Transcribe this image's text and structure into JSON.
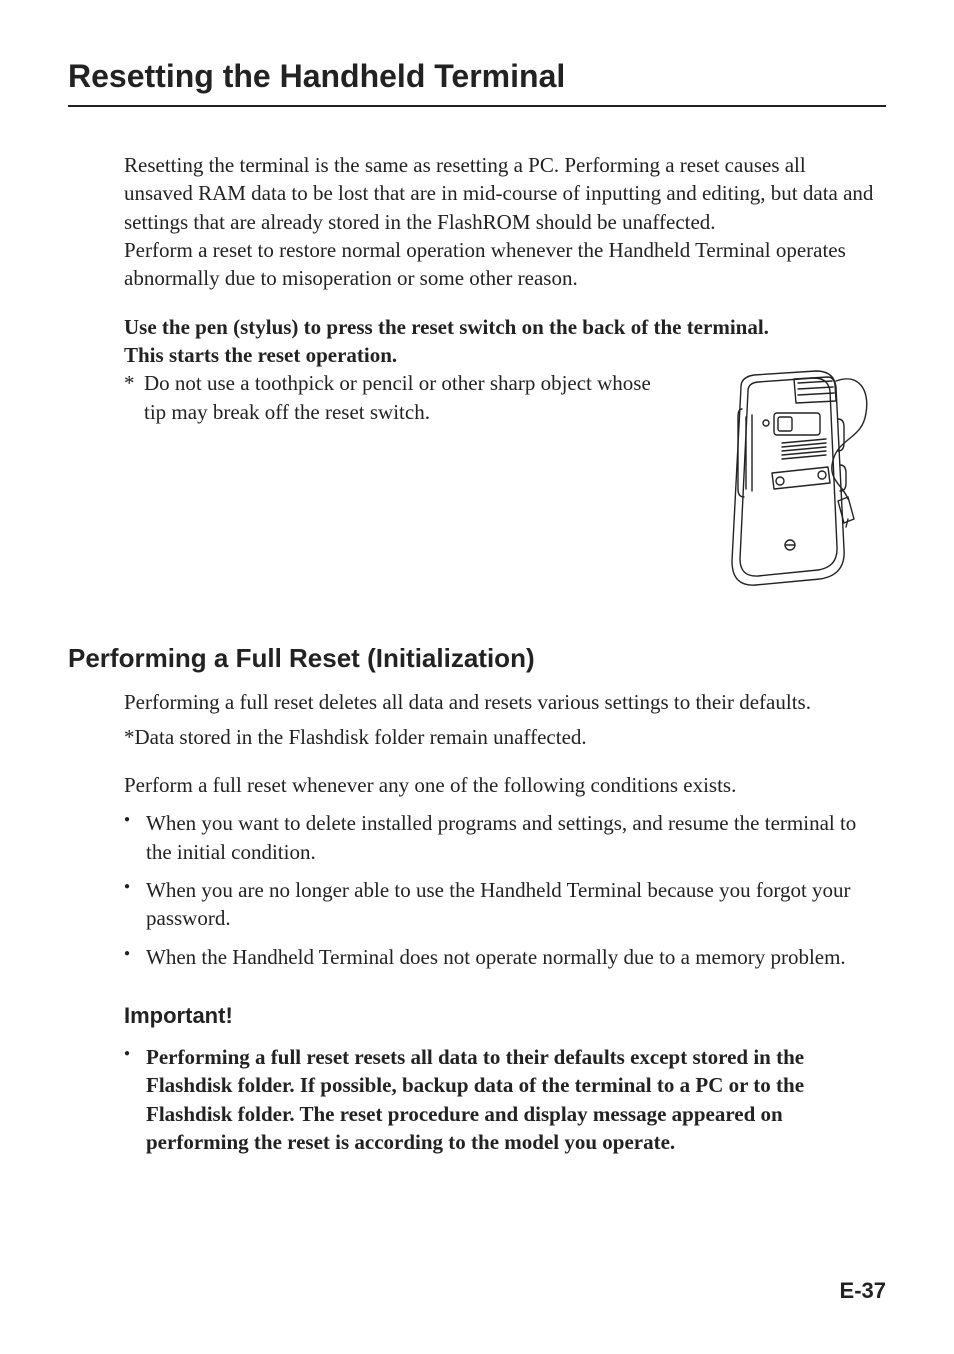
{
  "title": "Resetting the Handheld Terminal",
  "intro": "Resetting the terminal is the same as resetting a PC. Performing a reset causes all unsaved RAM data to be lost that are in mid-course of inputting and editing, but data and settings that are already stored in the FlashROM should be unaffected.\nPerform a reset to restore normal operation whenever the Handheld Terminal operates abnormally due to misoperation or some other reason.",
  "instruction_bold_1": "Use the pen (stylus) to press the reset switch on the back of the terminal.",
  "instruction_bold_2": "This starts the reset operation.",
  "note_marker": "*",
  "note_text": "Do not use a toothpick or pencil or other sharp object whose tip may break off the reset switch.",
  "section2_heading": "Performing a Full Reset (Initialization)",
  "section2_p1": "Performing a full reset deletes all data and resets various settings to their defaults.",
  "section2_p2": "*Data stored in the Flashdisk folder remain unaffected.",
  "section2_p3": "Perform a full reset whenever any one of the following conditions exists.",
  "bullets": [
    "When you want to delete installed programs and settings, and resume the terminal to the initial condition.",
    "When you are no longer able to use the Handheld Terminal because you forgot your password.",
    "When the Handheld Terminal does not operate normally due to a memory problem."
  ],
  "important_heading": "Important!",
  "important_bullet": "Performing a full reset resets all data to their defaults except stored in the Flashdisk folder. If possible, backup data of the terminal to a PC or to the Flashdisk folder. The reset procedure and display message appeared on performing the reset is according to the model you operate.",
  "page_number": "E-37",
  "style": {
    "font_body": "Times New Roman",
    "font_headings": "Arial",
    "body_size_pt": 21,
    "h1_size_pt": 32,
    "h2_size_pt": 26,
    "h3_size_pt": 22,
    "text_color": "#222222",
    "rule_color": "#222222",
    "background": "#ffffff",
    "bullet_glyph": "●",
    "illustration_stroke": "#222222",
    "illustration_stroke_width": 1.4
  }
}
